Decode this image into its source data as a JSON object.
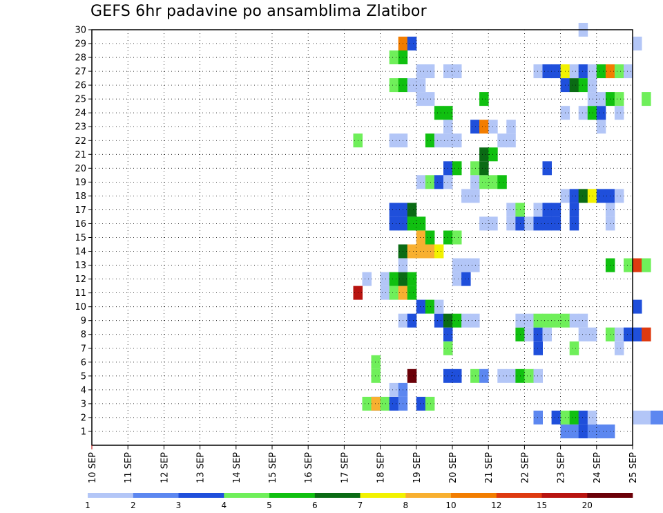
{
  "chart_data": {
    "type": "heatmap",
    "title": "GEFS 6hr padavine po ansamblima Zlatibor",
    "x_tick_labels": [
      "10 SEP",
      "11 SEP",
      "12 SEP",
      "13 SEP",
      "14 SEP",
      "15 SEP",
      "16 SEP",
      "17 SEP",
      "18 SEP",
      "19 SEP",
      "20 SEP",
      "21 SEP",
      "22 SEP",
      "23 SEP",
      "24 SEP",
      "25 SEP"
    ],
    "x_range_days": [
      0,
      15
    ],
    "y_tick_labels": [
      "1",
      "2",
      "3",
      "4",
      "5",
      "6",
      "7",
      "8",
      "9",
      "10",
      "11",
      "12",
      "13",
      "14",
      "15",
      "16",
      "17",
      "18",
      "19",
      "20",
      "21",
      "22",
      "23",
      "24",
      "25",
      "26",
      "27",
      "28",
      "29",
      "30"
    ],
    "y_range": [
      0,
      30
    ],
    "grid": true,
    "colorbar": {
      "labels": [
        "1",
        "2",
        "3",
        "4",
        "5",
        "6",
        "7",
        "8",
        "10",
        "12",
        "15",
        "20"
      ],
      "colors": [
        "#b3c6f7",
        "#5c87f0",
        "#1f4fdb",
        "#6fef5a",
        "#10c010",
        "#0a6b14",
        "#f2f200",
        "#f8b030",
        "#f27d00",
        "#de3a10",
        "#b81410",
        "#6b0008"
      ]
    },
    "cells": [
      {
        "m": 1,
        "t": [
          [
            5,
            1
          ],
          [
            5.25,
            1
          ],
          [
            5.5,
            2
          ],
          [
            5.75,
            1
          ],
          [
            6,
            1
          ],
          [
            6.25,
            1
          ]
        ]
      },
      {
        "m": 2,
        "t": [
          [
            4.25,
            1
          ],
          [
            4.75,
            2
          ],
          [
            5,
            3
          ],
          [
            5.25,
            4
          ],
          [
            5.5,
            2
          ],
          [
            5.75,
            0
          ],
          [
            7,
            0
          ],
          [
            7.25,
            0
          ],
          [
            7.5,
            1
          ],
          [
            7.75,
            1
          ]
        ]
      },
      {
        "m": 3,
        "t": [
          [
            -0.25,
            2
          ],
          [
            -0.5,
            3
          ],
          [
            -0.25,
            7
          ],
          [
            0,
            3
          ],
          [
            0.25,
            2
          ],
          [
            0.5,
            1
          ],
          [
            1,
            2
          ],
          [
            1.25,
            3
          ]
        ]
      },
      {
        "m": 4,
        "t": [
          [
            0.25,
            0
          ],
          [
            0.5,
            1
          ]
        ]
      },
      {
        "m": 5,
        "t": [
          [
            -0.25,
            3
          ],
          [
            0.75,
            11
          ],
          [
            1.75,
            2
          ],
          [
            2,
            2
          ],
          [
            2.5,
            3
          ],
          [
            2.75,
            1
          ],
          [
            3.25,
            0
          ],
          [
            3.5,
            0
          ],
          [
            3.75,
            4
          ],
          [
            4,
            3
          ],
          [
            4.25,
            0
          ]
        ]
      },
      {
        "m": 6,
        "t": [
          [
            -0.25,
            3
          ]
        ]
      },
      {
        "m": 7,
        "t": [
          [
            1.75,
            3
          ],
          [
            4.25,
            2
          ],
          [
            5.25,
            3
          ],
          [
            6.5,
            0
          ]
        ]
      },
      {
        "m": 8,
        "t": [
          [
            1.75,
            2
          ],
          [
            3.75,
            4
          ],
          [
            4,
            0
          ],
          [
            4.25,
            2
          ],
          [
            4.5,
            0
          ],
          [
            5.5,
            0
          ],
          [
            5.75,
            0
          ],
          [
            6.25,
            3
          ],
          [
            6.5,
            0
          ],
          [
            6.75,
            2
          ],
          [
            7,
            2
          ],
          [
            7.25,
            9
          ]
        ]
      },
      {
        "m": 9,
        "t": [
          [
            0.5,
            0
          ],
          [
            0.75,
            2
          ],
          [
            1.5,
            2
          ],
          [
            1.75,
            5
          ],
          [
            2,
            4
          ],
          [
            2.25,
            0
          ],
          [
            2.5,
            0
          ],
          [
            3.75,
            0
          ],
          [
            4,
            0
          ],
          [
            4.25,
            3
          ],
          [
            4.5,
            3
          ],
          [
            4.75,
            3
          ],
          [
            5,
            3
          ],
          [
            5.25,
            0
          ],
          [
            5.5,
            0
          ]
        ]
      },
      {
        "m": 10,
        "t": [
          [
            1,
            2
          ],
          [
            1.25,
            4
          ],
          [
            1.5,
            0
          ],
          [
            7,
            2
          ]
        ]
      },
      {
        "m": 11,
        "t": [
          [
            -0.75,
            10
          ],
          [
            0,
            0
          ],
          [
            0.25,
            3
          ],
          [
            0.5,
            7
          ],
          [
            0.75,
            4
          ]
        ]
      },
      {
        "m": 12,
        "t": [
          [
            -0.5,
            0
          ],
          [
            0,
            0
          ],
          [
            0.25,
            4
          ],
          [
            0.5,
            5
          ],
          [
            0.75,
            4
          ],
          [
            2,
            0
          ],
          [
            2.25,
            2
          ]
        ]
      },
      {
        "m": 13,
        "t": [
          [
            0.5,
            0
          ],
          [
            2,
            0
          ],
          [
            2.25,
            0
          ],
          [
            2.5,
            0
          ],
          [
            6.25,
            4
          ],
          [
            6.75,
            3
          ],
          [
            7,
            9
          ],
          [
            7.25,
            3
          ]
        ]
      },
      {
        "m": 14,
        "t": [
          [
            0.5,
            5
          ],
          [
            0.75,
            7
          ],
          [
            1,
            7
          ],
          [
            1.25,
            7
          ],
          [
            1.5,
            6
          ]
        ]
      },
      {
        "m": 15,
        "t": [
          [
            1,
            7
          ],
          [
            1.25,
            4
          ],
          [
            1.75,
            4
          ],
          [
            2,
            3
          ]
        ]
      },
      {
        "m": 16,
        "t": [
          [
            0.25,
            2
          ],
          [
            0.5,
            2
          ],
          [
            0.75,
            4
          ],
          [
            1,
            4
          ],
          [
            2.75,
            0
          ],
          [
            3,
            0
          ],
          [
            3.5,
            0
          ],
          [
            3.75,
            2
          ],
          [
            4,
            0
          ],
          [
            4.25,
            2
          ],
          [
            4.5,
            2
          ],
          [
            4.75,
            2
          ],
          [
            5.25,
            2
          ],
          [
            6.25,
            0
          ]
        ]
      },
      {
        "m": 17,
        "t": [
          [
            0.25,
            2
          ],
          [
            0.5,
            2
          ],
          [
            0.75,
            5
          ],
          [
            3.5,
            0
          ],
          [
            3.75,
            3
          ],
          [
            4.25,
            0
          ],
          [
            4.5,
            2
          ],
          [
            4.75,
            2
          ],
          [
            5.25,
            2
          ],
          [
            6.25,
            0
          ]
        ]
      },
      {
        "m": 18,
        "t": [
          [
            2.25,
            0
          ],
          [
            2.5,
            0
          ],
          [
            5,
            0
          ],
          [
            5.25,
            2
          ],
          [
            5.5,
            5
          ],
          [
            5.75,
            6
          ],
          [
            6,
            2
          ],
          [
            6.25,
            2
          ],
          [
            6.5,
            0
          ]
        ]
      },
      {
        "m": 19,
        "t": [
          [
            1,
            0
          ],
          [
            1.25,
            3
          ],
          [
            1.5,
            2
          ],
          [
            1.75,
            0
          ],
          [
            2.5,
            0
          ],
          [
            2.75,
            3
          ],
          [
            3,
            3
          ],
          [
            3.25,
            4
          ]
        ]
      },
      {
        "m": 20,
        "t": [
          [
            1.75,
            2
          ],
          [
            2,
            4
          ],
          [
            2.5,
            3
          ],
          [
            2.75,
            5
          ],
          [
            4.5,
            2
          ]
        ]
      },
      {
        "m": 21,
        "t": [
          [
            2.75,
            5
          ],
          [
            3,
            4
          ]
        ]
      },
      {
        "m": 22,
        "t": [
          [
            -0.75,
            3
          ],
          [
            0.25,
            0
          ],
          [
            0.5,
            0
          ],
          [
            1.25,
            4
          ],
          [
            1.5,
            0
          ],
          [
            1.75,
            0
          ],
          [
            2,
            0
          ],
          [
            3.25,
            0
          ],
          [
            3.5,
            0
          ]
        ]
      },
      {
        "m": 23,
        "t": [
          [
            1.75,
            0
          ],
          [
            2.5,
            2
          ],
          [
            2.75,
            8
          ],
          [
            3,
            0
          ],
          [
            3.5,
            0
          ],
          [
            6,
            0
          ]
        ]
      },
      {
        "m": 24,
        "t": [
          [
            1.5,
            4
          ],
          [
            1.75,
            4
          ],
          [
            5,
            0
          ],
          [
            5.5,
            0
          ],
          [
            5.75,
            4
          ],
          [
            6,
            2
          ],
          [
            6.5,
            0
          ]
        ]
      },
      {
        "m": 25,
        "t": [
          [
            1,
            0
          ],
          [
            1.25,
            0
          ],
          [
            2.75,
            4
          ],
          [
            5.75,
            0
          ],
          [
            6,
            0
          ],
          [
            6.25,
            4
          ],
          [
            6.5,
            3
          ],
          [
            7.25,
            3
          ]
        ]
      },
      {
        "m": 26,
        "t": [
          [
            0.25,
            3
          ],
          [
            0.5,
            4
          ],
          [
            0.75,
            0
          ],
          [
            1,
            0
          ],
          [
            5,
            2
          ],
          [
            5.25,
            5
          ],
          [
            5.5,
            4
          ],
          [
            5.75,
            0
          ]
        ]
      },
      {
        "m": 27,
        "t": [
          [
            1,
            0
          ],
          [
            1.25,
            0
          ],
          [
            1.75,
            0
          ],
          [
            2,
            0
          ],
          [
            4.25,
            0
          ],
          [
            4.5,
            2
          ],
          [
            4.75,
            2
          ],
          [
            5,
            6
          ],
          [
            5.25,
            0
          ],
          [
            5.5,
            2
          ],
          [
            5.75,
            0
          ],
          [
            6,
            4
          ],
          [
            6.25,
            8
          ],
          [
            6.5,
            3
          ],
          [
            6.75,
            0
          ]
        ]
      },
      {
        "m": 28,
        "t": [
          [
            0.25,
            3
          ],
          [
            0.5,
            4
          ]
        ]
      },
      {
        "m": 29,
        "t": [
          [
            0.5,
            8
          ],
          [
            0.75,
            2
          ],
          [
            7,
            0
          ]
        ]
      },
      {
        "m": 30,
        "t": [
          [
            5.5,
            0
          ]
        ]
      }
    ]
  }
}
